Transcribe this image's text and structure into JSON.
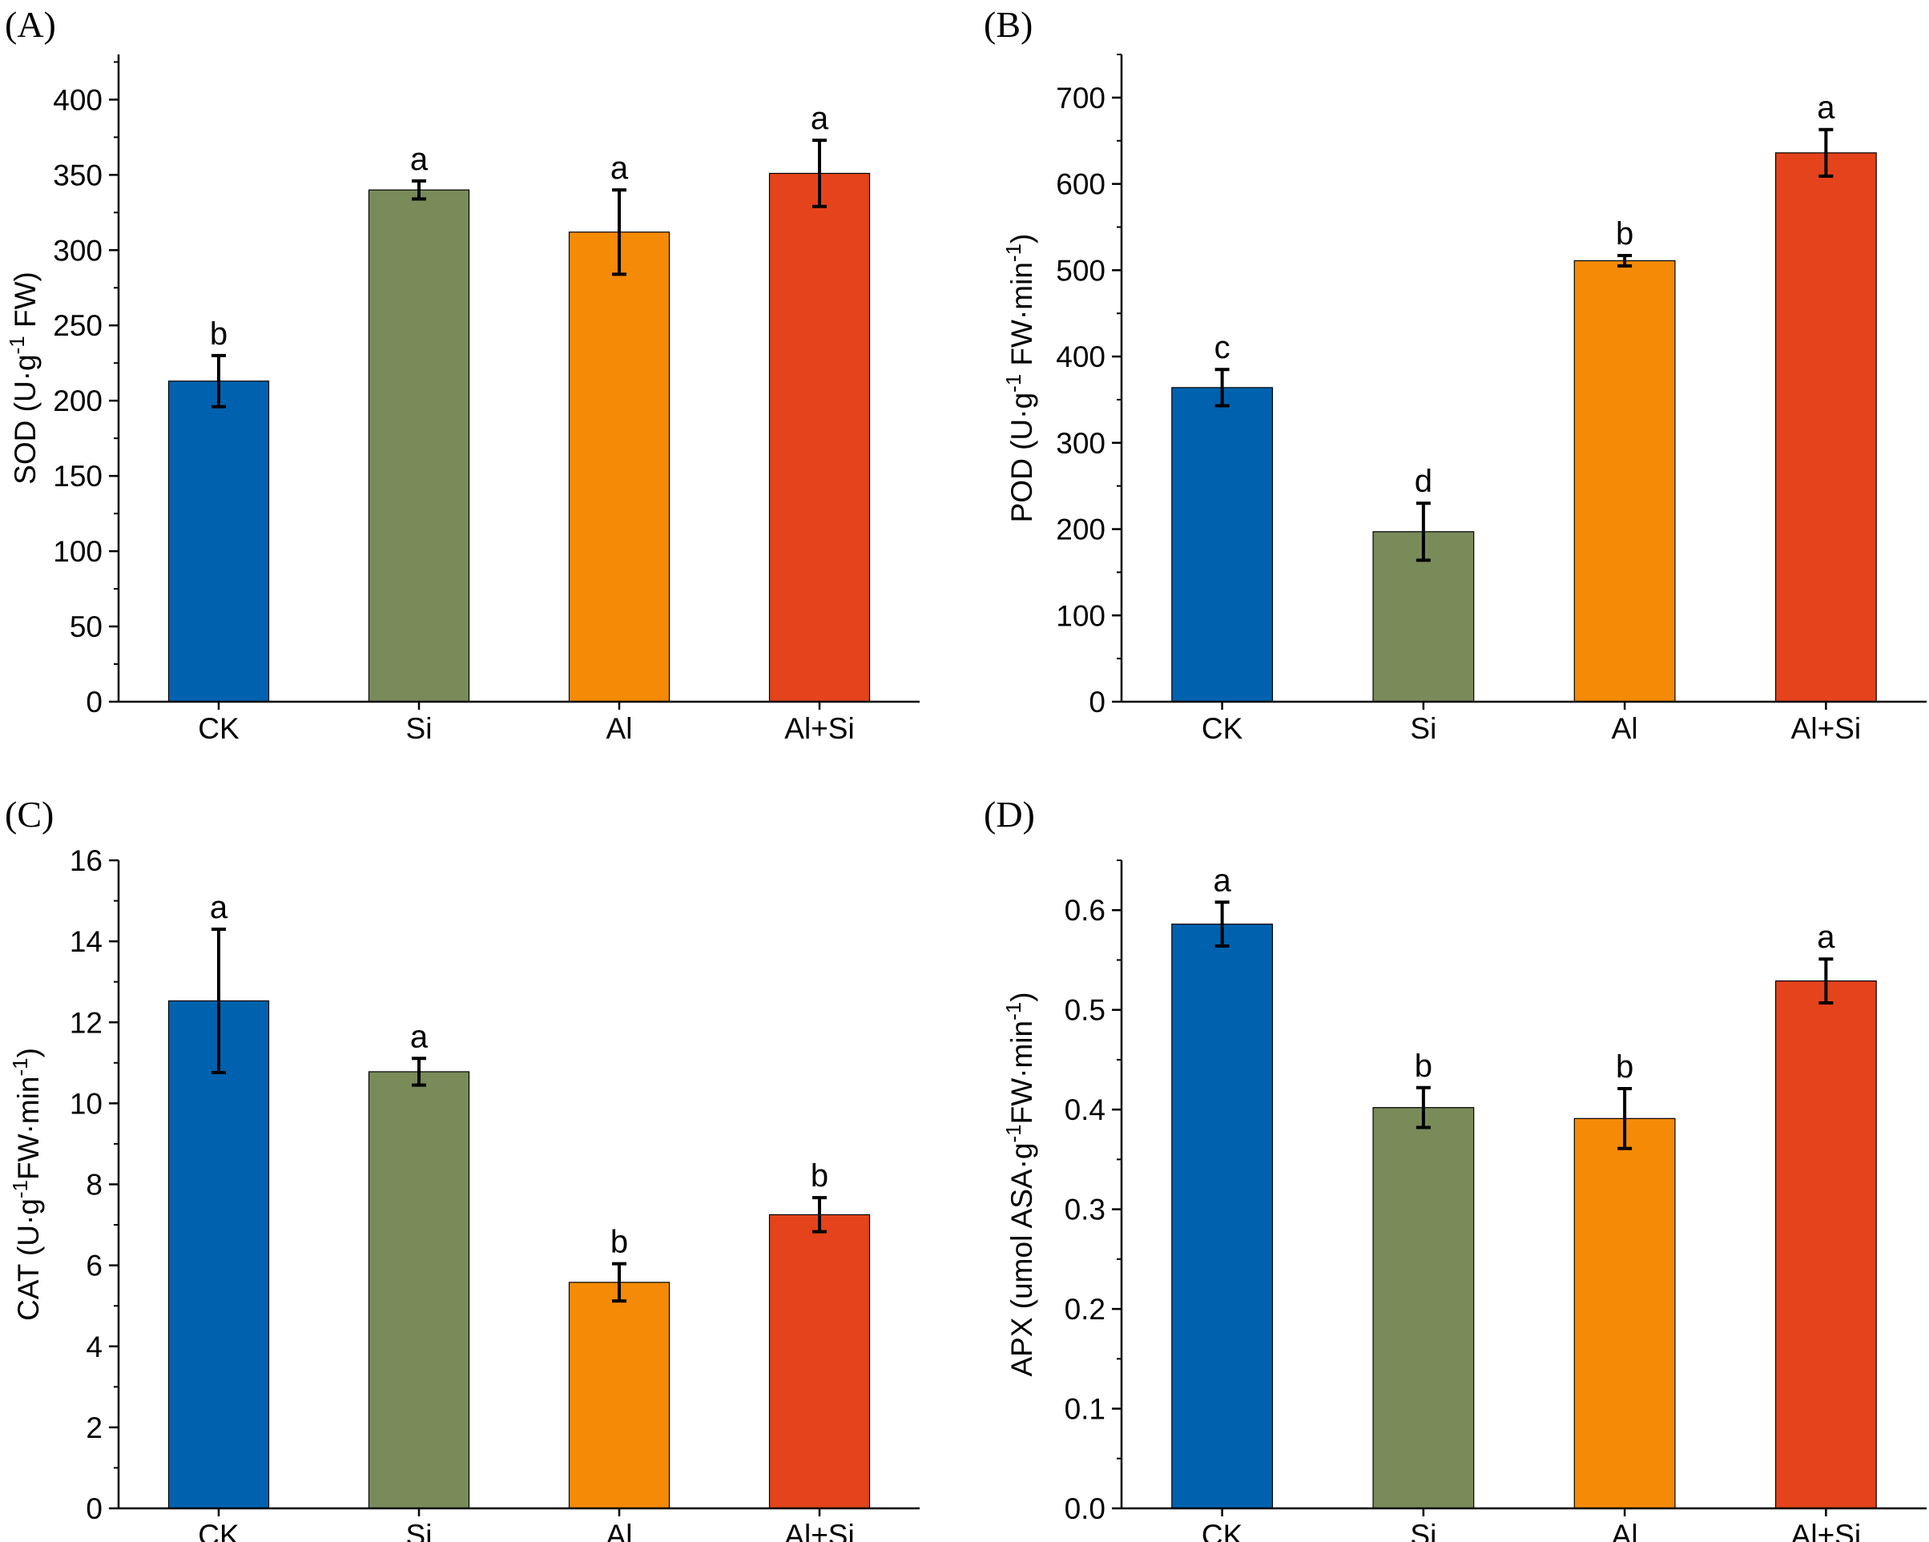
{
  "chart_data": [
    {
      "panel": "(A)",
      "type": "bar",
      "categories": [
        "CK",
        "Si",
        "Al",
        "Al+Si"
      ],
      "values": [
        213,
        340,
        312,
        351
      ],
      "errors": [
        17,
        6,
        28,
        22
      ],
      "significance": [
        "b",
        "a",
        "a",
        "a"
      ],
      "colors": [
        "#0062AE",
        "#7A8B5A",
        "#F58A07",
        "#E5431C"
      ],
      "ylabel_main": "SOD (U·g",
      "ylabel_sup": "-1",
      "ylabel_tail": " FW)",
      "ylim": [
        0,
        430
      ],
      "yticks": [
        0,
        50,
        100,
        150,
        200,
        250,
        300,
        350,
        400
      ],
      "ytick_labels": [
        "0",
        "50",
        "100",
        "150",
        "200",
        "250",
        "300",
        "350",
        "400"
      ],
      "minor_step": 25
    },
    {
      "panel": "(B)",
      "type": "bar",
      "categories": [
        "CK",
        "Si",
        "Al",
        "Al+Si"
      ],
      "values": [
        364,
        197,
        511,
        636
      ],
      "errors": [
        21,
        33,
        6,
        27
      ],
      "significance": [
        "c",
        "d",
        "b",
        "a"
      ],
      "colors": [
        "#0062AE",
        "#7A8B5A",
        "#F58A07",
        "#E5431C"
      ],
      "ylabel_main": "POD (U·g",
      "ylabel_sup": "-1",
      "ylabel_tail": " FW·min",
      "ylabel_sup2": "-1",
      "ylabel_tail2": ")",
      "ylim": [
        0,
        750
      ],
      "yticks": [
        0,
        100,
        200,
        300,
        400,
        500,
        600,
        700
      ],
      "ytick_labels": [
        "0",
        "100",
        "200",
        "300",
        "400",
        "500",
        "600",
        "700"
      ],
      "minor_step": 50
    },
    {
      "panel": "(C)",
      "type": "bar",
      "categories": [
        "CK",
        "Si",
        "Al",
        "Al+Si"
      ],
      "values": [
        12.53,
        10.78,
        5.58,
        7.25
      ],
      "errors": [
        1.77,
        0.33,
        0.46,
        0.42
      ],
      "significance": [
        "a",
        "a",
        "b",
        "b"
      ],
      "colors": [
        "#0062AE",
        "#7A8B5A",
        "#F58A07",
        "#E5431C"
      ],
      "ylabel_main": "CAT (U·g",
      "ylabel_sup": "-1",
      "ylabel_tail": "FW·min",
      "ylabel_sup2": "-1",
      "ylabel_tail2": ")",
      "ylim": [
        0,
        16
      ],
      "yticks": [
        0,
        2,
        4,
        6,
        8,
        10,
        12,
        14,
        16
      ],
      "ytick_labels": [
        "0",
        "2",
        "4",
        "6",
        "8",
        "10",
        "12",
        "14",
        "16"
      ],
      "minor_step": 1
    },
    {
      "panel": "(D)",
      "type": "bar",
      "categories": [
        "CK",
        "Si",
        "Al",
        "Al+Si"
      ],
      "values": [
        0.586,
        0.402,
        0.391,
        0.529
      ],
      "errors": [
        0.022,
        0.02,
        0.03,
        0.022
      ],
      "significance": [
        "a",
        "b",
        "b",
        "a"
      ],
      "colors": [
        "#0062AE",
        "#7A8B5A",
        "#F58A07",
        "#E5431C"
      ],
      "ylabel_main": "APX (umol ASA·g",
      "ylabel_sup": "-1",
      "ylabel_tail": "FW·min",
      "ylabel_sup2": "-1",
      "ylabel_tail2": ")",
      "ylim": [
        0,
        0.65
      ],
      "yticks": [
        0,
        0.1,
        0.2,
        0.3,
        0.4,
        0.5,
        0.6
      ],
      "ytick_labels": [
        "0.0",
        "0.1",
        "0.2",
        "0.3",
        "0.4",
        "0.5",
        "0.6"
      ],
      "minor_step": 0.05
    }
  ]
}
